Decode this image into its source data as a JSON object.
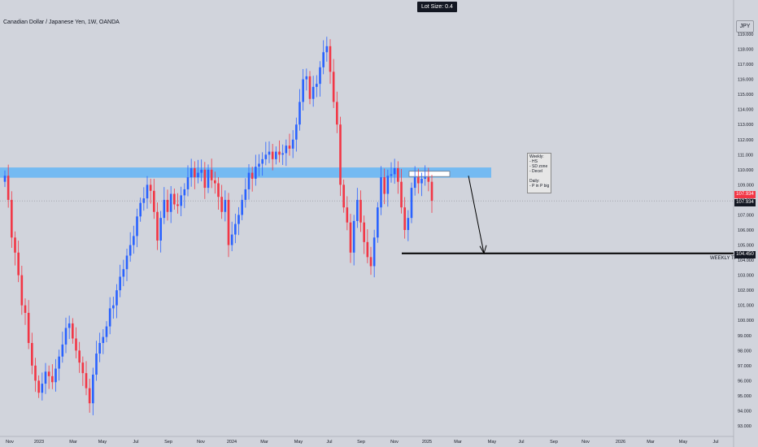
{
  "header": {
    "symbol_title": "Canadian Dollar / Japanese Yen, 1W, OANDA",
    "lot_size": "Lot Size: 0.4",
    "currency": "JPY"
  },
  "annotations": {
    "note_lines": [
      "Weekly:",
      "- HS",
      "- SD zone",
      "- Decel",
      "",
      "Daily:",
      "- P in P big"
    ],
    "tp_label": "WEEKLY TP",
    "price_tags": [
      {
        "value": "107.934",
        "color": "#f23645"
      },
      {
        "value": "107.934",
        "color": "#131722"
      },
      {
        "value": "104.450",
        "color": "#131722"
      }
    ]
  },
  "colors": {
    "background": "#d1d4dc",
    "up_candle": "#2962ff",
    "down_candle": "#f23645",
    "zone": "#64b5f6",
    "line": "#000000"
  },
  "chart_data": {
    "type": "candlestick",
    "title": "Canadian Dollar / Japanese Yen, 1W, OANDA",
    "xlabel": "",
    "ylabel": "",
    "ylim": [
      92.6,
      119.6
    ],
    "yticks": [
      "119.000",
      "118.000",
      "117.000",
      "116.000",
      "115.000",
      "114.000",
      "113.000",
      "112.000",
      "111.000",
      "110.000",
      "109.000",
      "108.000",
      "107.000",
      "106.000",
      "105.000",
      "104.000",
      "103.000",
      "102.000",
      "101.000",
      "100.000",
      "99.000",
      "98.000",
      "97.000",
      "96.000",
      "95.000",
      "94.000",
      "93.000"
    ],
    "xticks": [
      "Nov",
      "2023",
      "Mar",
      "May",
      "Jul",
      "Sep",
      "Nov",
      "2024",
      "Mar",
      "May",
      "Jul",
      "Sep",
      "Nov",
      "2025",
      "Mar",
      "May",
      "Jul",
      "Sep",
      "Nov",
      "2026",
      "Mar",
      "May",
      "Jul"
    ],
    "grid": false,
    "current_price": 107.934,
    "supply_zone": [
      109.47,
      110.15
    ],
    "take_profit": 104.45,
    "projection": [
      {
        "date": "2025-02",
        "price": 109.6
      },
      {
        "date": "2025-04",
        "price": 104.45
      }
    ],
    "candles": {
      "o": [
        109.2,
        109.6,
        108.0,
        105.5,
        104.5,
        103.0,
        101.0,
        100.5,
        98.5,
        97.0,
        96.0,
        95.2,
        95.8,
        96.6,
        96.3,
        95.9,
        96.8,
        97.6,
        98.4,
        99.5,
        99.8,
        98.8,
        98.0,
        97.2,
        96.5,
        95.5,
        94.5,
        96.4,
        97.8,
        98.5,
        98.9,
        99.6,
        100.8,
        101.0,
        102.0,
        102.9,
        103.4,
        104.3,
        105.0,
        105.6,
        106.9,
        107.8,
        108.1,
        109.0,
        108.6,
        107.2,
        105.3,
        106.8,
        108.0,
        107.2,
        108.4,
        107.7,
        107.6,
        108.3,
        108.7,
        109.5,
        110.1,
        109.5,
        109.8,
        110.0,
        108.8,
        110.0,
        109.3,
        109.1,
        108.2,
        107.2,
        108.0,
        105.0,
        105.7,
        106.4,
        107.0,
        108.0,
        108.7,
        109.8,
        109.4,
        110.2,
        110.4,
        110.7,
        111.0,
        111.2,
        110.7,
        111.2,
        111.0,
        111.1,
        111.6,
        111.4,
        112.0,
        113.0,
        114.5,
        116.0,
        116.2,
        114.7,
        115.5,
        115.7,
        116.8,
        117.8,
        118.2,
        116.5,
        114.5,
        113.0,
        109.0,
        107.5,
        106.5,
        104.5,
        106.6,
        108.0,
        106.5,
        105.2,
        104.2,
        103.6,
        105.5,
        107.5,
        109.5,
        108.4,
        109.6,
        109.7,
        110.1,
        109.2,
        107.5,
        106.0,
        106.8,
        108.8,
        109.5,
        109.1,
        109.4,
        109.5,
        109.2
      ],
      "c": [
        109.6,
        108.0,
        105.5,
        104.5,
        103.0,
        101.0,
        100.5,
        98.5,
        97.0,
        96.0,
        95.2,
        95.8,
        96.6,
        96.3,
        95.9,
        96.8,
        97.6,
        98.4,
        99.5,
        99.8,
        98.8,
        98.0,
        97.2,
        96.5,
        95.5,
        94.5,
        96.4,
        97.8,
        98.5,
        98.9,
        99.6,
        100.8,
        101.0,
        102.0,
        102.9,
        103.4,
        104.3,
        105.0,
        105.6,
        106.9,
        107.8,
        108.1,
        109.0,
        108.6,
        107.2,
        105.3,
        106.8,
        108.0,
        107.2,
        108.4,
        107.7,
        107.6,
        108.3,
        108.7,
        109.5,
        110.1,
        109.5,
        109.8,
        110.0,
        108.8,
        110.0,
        109.3,
        109.1,
        108.2,
        107.2,
        108.0,
        105.0,
        105.7,
        106.4,
        107.0,
        108.0,
        108.7,
        109.8,
        109.4,
        110.2,
        110.4,
        110.7,
        111.0,
        111.2,
        110.7,
        111.2,
        111.0,
        111.1,
        111.6,
        111.4,
        112.0,
        113.0,
        114.5,
        116.0,
        116.2,
        114.7,
        115.5,
        115.7,
        116.8,
        117.8,
        118.2,
        116.5,
        114.5,
        113.0,
        109.0,
        107.5,
        106.5,
        104.5,
        106.6,
        108.0,
        106.5,
        105.2,
        104.2,
        103.6,
        105.5,
        107.5,
        109.5,
        108.4,
        109.6,
        109.7,
        110.1,
        109.2,
        107.5,
        106.0,
        106.8,
        108.8,
        109.5,
        109.1,
        109.4,
        109.5,
        109.2,
        107.934
      ]
    }
  }
}
